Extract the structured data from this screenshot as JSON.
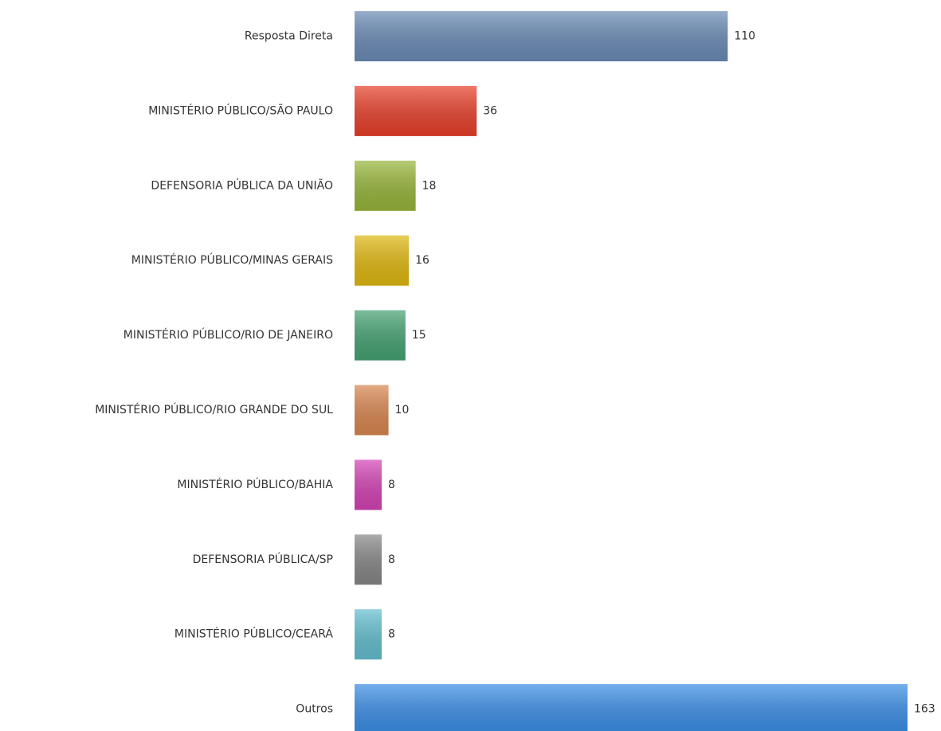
{
  "chart_data": {
    "type": "barh",
    "categories": [
      "Resposta Direta",
      "MINISTÉRIO PÚBLICO/SÃO PAULO",
      "DEFENSORIA PÚBLICA DA UNIÃO",
      "MINISTÉRIO PÚBLICO/MINAS GERAIS",
      "MINISTÉRIO PÚBLICO/RIO DE JANEIRO",
      "MINISTÉRIO PÚBLICO/RIO GRANDE DO SUL",
      "MINISTÉRIO PÚBLICO/BAHIA",
      "DEFENSORIA PÚBLICA/SP",
      "MINISTÉRIO PÚBLICO/CEARÁ",
      "Outros"
    ],
    "values": [
      110,
      36,
      18,
      16,
      15,
      10,
      8,
      8,
      8,
      163
    ],
    "colors": [
      "#6a8bb6",
      "#e8402a",
      "#98b63a",
      "#e0b810",
      "#45a273",
      "#d98650",
      "#d443b5",
      "#878787",
      "#64bfd0",
      "#3a8ee6"
    ]
  }
}
